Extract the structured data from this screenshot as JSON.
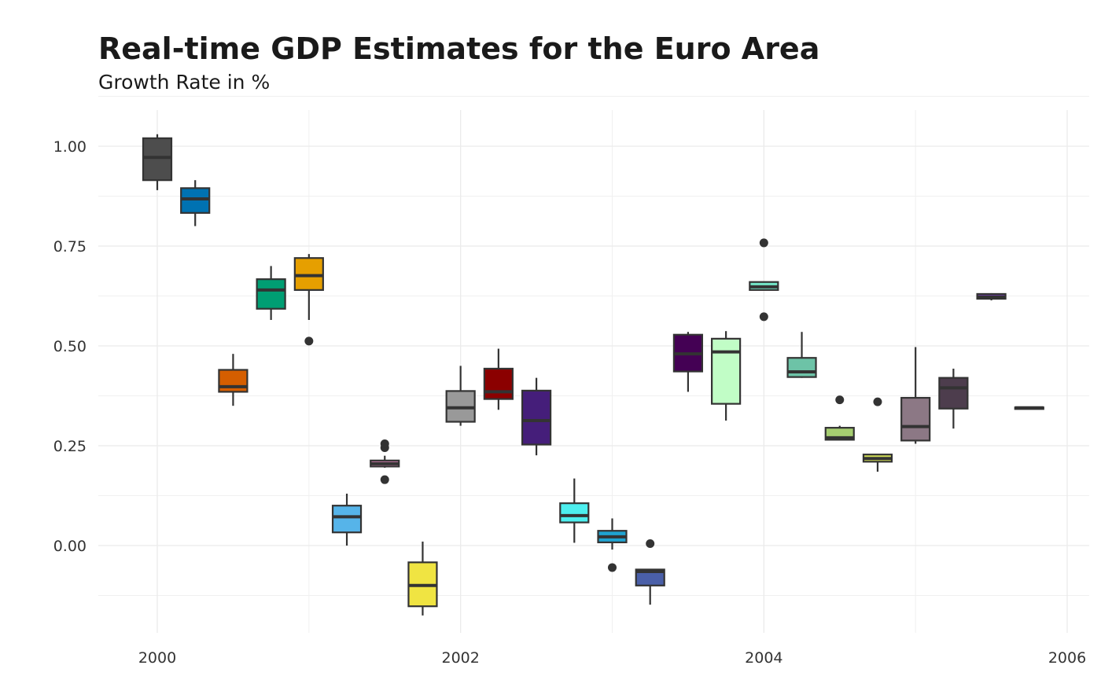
{
  "chart_data": {
    "type": "boxplot",
    "title": "Real-time GDP Estimates for the Euro Area",
    "subtitle": "Growth Rate in %",
    "xlabel": "",
    "ylabel": "",
    "xlim": [
      1999.4,
      2006.1
    ],
    "ylim": [
      -0.23,
      1.09
    ],
    "x_ticks": [
      2000,
      2002,
      2004,
      2006
    ],
    "y_ticks": [
      0.0,
      0.25,
      0.5,
      0.75,
      1.0
    ],
    "x_tick_labels": [
      "2000",
      "2002",
      "2004",
      "2006"
    ],
    "y_tick_labels": [
      "0.00",
      "0.25",
      "0.50",
      "0.75",
      "1.00"
    ],
    "grid": true,
    "legend": "none",
    "boxes": [
      {
        "x": 2000.0,
        "color": "#4D4D4D",
        "lower_whisker": 0.89,
        "q1": 0.915,
        "median": 0.972,
        "q3": 1.02,
        "upper_whisker": 1.03,
        "outliers": []
      },
      {
        "x": 2000.25,
        "color": "#0072B2",
        "lower_whisker": 0.8,
        "q1": 0.833,
        "median": 0.868,
        "q3": 0.895,
        "upper_whisker": 0.915,
        "outliers": []
      },
      {
        "x": 2000.5,
        "color": "#D55E00",
        "lower_whisker": 0.35,
        "q1": 0.385,
        "median": 0.398,
        "q3": 0.44,
        "upper_whisker": 0.48,
        "outliers": []
      },
      {
        "x": 2000.75,
        "color": "#009E73",
        "lower_whisker": 0.565,
        "q1": 0.593,
        "median": 0.64,
        "q3": 0.667,
        "upper_whisker": 0.7,
        "outliers": []
      },
      {
        "x": 2001.0,
        "color": "#E69F00",
        "lower_whisker": 0.565,
        "q1": 0.64,
        "median": 0.676,
        "q3": 0.72,
        "upper_whisker": 0.73,
        "outliers": [
          0.512
        ]
      },
      {
        "x": 2001.25,
        "color": "#56B4E9",
        "lower_whisker": 0.0,
        "q1": 0.033,
        "median": 0.072,
        "q3": 0.1,
        "upper_whisker": 0.13,
        "outliers": []
      },
      {
        "x": 2001.5,
        "color": "#CC79A7",
        "lower_whisker": 0.195,
        "q1": 0.198,
        "median": 0.205,
        "q3": 0.213,
        "upper_whisker": 0.225,
        "outliers": [
          0.165,
          0.245,
          0.255
        ]
      },
      {
        "x": 2001.75,
        "color": "#F0E442",
        "lower_whisker": -0.175,
        "q1": -0.152,
        "median": -0.1,
        "q3": -0.042,
        "upper_whisker": 0.01,
        "outliers": []
      },
      {
        "x": 2002.0,
        "color": "#999999",
        "lower_whisker": 0.3,
        "q1": 0.31,
        "median": 0.345,
        "q3": 0.387,
        "upper_whisker": 0.45,
        "outliers": []
      },
      {
        "x": 2002.25,
        "color": "#8B0000",
        "lower_whisker": 0.34,
        "q1": 0.367,
        "median": 0.385,
        "q3": 0.443,
        "upper_whisker": 0.493,
        "outliers": []
      },
      {
        "x": 2002.5,
        "color": "#451E7A",
        "lower_whisker": 0.226,
        "q1": 0.253,
        "median": 0.313,
        "q3": 0.388,
        "upper_whisker": 0.42,
        "outliers": []
      },
      {
        "x": 2002.75,
        "color": "#4DEFEF",
        "lower_whisker": 0.007,
        "q1": 0.058,
        "median": 0.075,
        "q3": 0.106,
        "upper_whisker": 0.168,
        "outliers": []
      },
      {
        "x": 2003.0,
        "color": "#1FA3D1",
        "lower_whisker": -0.01,
        "q1": 0.008,
        "median": 0.022,
        "q3": 0.037,
        "upper_whisker": 0.068,
        "outliers": [
          -0.055
        ]
      },
      {
        "x": 2003.25,
        "color": "#4A5FA8",
        "lower_whisker": -0.148,
        "q1": -0.1,
        "median": -0.065,
        "q3": -0.06,
        "upper_whisker": -0.06,
        "outliers": [
          0.005
        ]
      },
      {
        "x": 2003.5,
        "color": "#440154",
        "lower_whisker": 0.385,
        "q1": 0.436,
        "median": 0.48,
        "q3": 0.528,
        "upper_whisker": 0.535,
        "outliers": []
      },
      {
        "x": 2003.75,
        "color": "#C1FDC6",
        "lower_whisker": 0.313,
        "q1": 0.355,
        "median": 0.485,
        "q3": 0.518,
        "upper_whisker": 0.537,
        "outliers": []
      },
      {
        "x": 2004.0,
        "color": "#73E6C7",
        "lower_whisker": 0.64,
        "q1": 0.64,
        "median": 0.648,
        "q3": 0.66,
        "upper_whisker": 0.66,
        "outliers": [
          0.758,
          0.573
        ]
      },
      {
        "x": 2004.25,
        "color": "#6DC3A7",
        "lower_whisker": 0.42,
        "q1": 0.422,
        "median": 0.435,
        "q3": 0.47,
        "upper_whisker": 0.535,
        "outliers": []
      },
      {
        "x": 2004.5,
        "color": "#A6CE71",
        "lower_whisker": 0.265,
        "q1": 0.265,
        "median": 0.27,
        "q3": 0.295,
        "upper_whisker": 0.3,
        "outliers": [
          0.365
        ]
      },
      {
        "x": 2004.75,
        "color": "#D4E157",
        "lower_whisker": 0.185,
        "q1": 0.21,
        "median": 0.218,
        "q3": 0.228,
        "upper_whisker": 0.228,
        "outliers": [
          0.36
        ]
      },
      {
        "x": 2005.0,
        "color": "#8C7885",
        "lower_whisker": 0.255,
        "q1": 0.263,
        "median": 0.298,
        "q3": 0.37,
        "upper_whisker": 0.497,
        "outliers": []
      },
      {
        "x": 2005.25,
        "color": "#4D3D4D",
        "lower_whisker": 0.293,
        "q1": 0.343,
        "median": 0.395,
        "q3": 0.42,
        "upper_whisker": 0.443,
        "outliers": []
      },
      {
        "x": 2005.5,
        "color": "#6A3D9A",
        "lower_whisker": 0.614,
        "q1": 0.618,
        "median": 0.622,
        "q3": 0.63,
        "upper_whisker": 0.632,
        "outliers": []
      },
      {
        "x": 2005.75,
        "color": "#2C7BB6",
        "lower_whisker": 0.342,
        "q1": 0.342,
        "median": 0.345,
        "q3": 0.346,
        "upper_whisker": 0.346,
        "outliers": []
      }
    ]
  }
}
